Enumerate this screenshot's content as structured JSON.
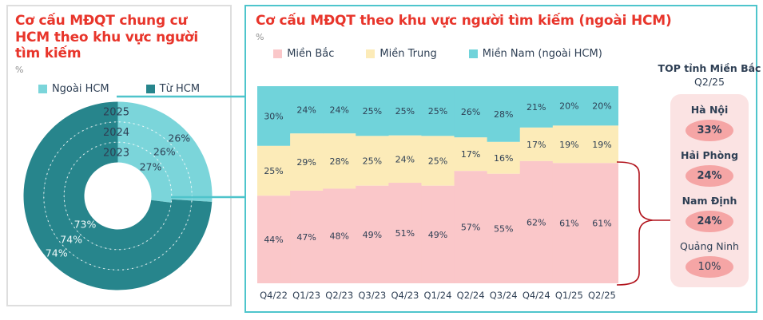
{
  "left_panel": {
    "title": "Cơ cấu MĐQT chung cư HCM theo khu vực người tìm kiếm",
    "unit": "%"
  },
  "right_panel": {
    "title": "Cơ cấu MĐQT theo khu vực người tìm kiếm (ngoài HCM)",
    "unit": "%"
  },
  "top_panel": {
    "title": "TOP tỉnh Miền Bắc",
    "period": "Q2/25",
    "items": [
      {
        "name": "Hà Nội",
        "value": "33%",
        "emphasis": true
      },
      {
        "name": "Hải Phòng",
        "value": "24%",
        "emphasis": true
      },
      {
        "name": "Nam Định",
        "value": "24%",
        "emphasis": true
      },
      {
        "name": "Quảng Ninh",
        "value": "10%",
        "emphasis": false
      }
    ]
  },
  "chart_data": [
    {
      "type": "pie",
      "variant": "multi-ring-donut",
      "title": "Cơ cấu MĐQT chung cư HCM theo khu vực người tìm kiếm",
      "unit": "%",
      "legend": [
        {
          "name": "Ngoài HCM",
          "color": "#7BD5DA"
        },
        {
          "name": "Từ HCM",
          "color": "#27858C"
        }
      ],
      "rings": [
        {
          "label": "2025",
          "ngoai_hcm": 26,
          "tu_hcm": 74
        },
        {
          "label": "2024",
          "ngoai_hcm": 26,
          "tu_hcm": 74
        },
        {
          "label": "2023",
          "ngoai_hcm": 27,
          "tu_hcm": 73
        }
      ]
    },
    {
      "type": "area",
      "variant": "stacked-100-step",
      "title": "Cơ cấu MĐQT theo khu vực người tìm kiếm (ngoài HCM)",
      "unit": "%",
      "ylim": [
        0,
        100
      ],
      "legend_position": "top",
      "categories": [
        "Q4/22",
        "Q1/23",
        "Q2/23",
        "Q3/23",
        "Q4/23",
        "Q1/24",
        "Q2/24",
        "Q3/24",
        "Q4/24",
        "Q1/25",
        "Q2/25"
      ],
      "series": [
        {
          "name": "Miền Bắc",
          "color": "#FAC7C9",
          "values": [
            44,
            47,
            48,
            49,
            51,
            49,
            57,
            55,
            62,
            61,
            61
          ]
        },
        {
          "name": "Miền Trung",
          "color": "#FCEBB8",
          "values": [
            25,
            29,
            28,
            25,
            24,
            25,
            17,
            16,
            17,
            19,
            19
          ]
        },
        {
          "name": "Miền Nam (ngoài HCM)",
          "color": "#70D3DA",
          "values": [
            30,
            24,
            24,
            25,
            25,
            25,
            26,
            28,
            21,
            20,
            20
          ]
        }
      ]
    }
  ],
  "colors": {
    "title_red": "#E8352B",
    "text_navy": "#2E3F54",
    "panel_border_teal": "#4EC5CC",
    "panel_border_gray": "#DEDEDE",
    "connector_teal": "#4FC4CB",
    "bracket_red": "#B1121B",
    "top_card_bg": "#FBE3E3",
    "top_badge_bg": "#F5A5A5"
  }
}
